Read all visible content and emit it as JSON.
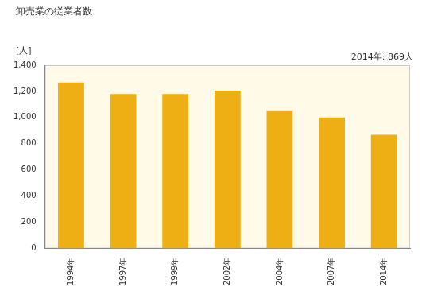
{
  "chart_data": {
    "type": "bar",
    "title": "卸売業の従業者数",
    "y_label": "[人]",
    "annotation": "2014年: 869人",
    "categories": [
      "1994年",
      "1997年",
      "1999年",
      "2002年",
      "2004年",
      "2007年",
      "2014年"
    ],
    "values": [
      1268,
      1180,
      1180,
      1205,
      1055,
      1000,
      869
    ],
    "color": "#eeaf14",
    "ylim": [
      0,
      1400
    ],
    "yticks": [
      0,
      200,
      400,
      600,
      800,
      {
        "value": 1000,
        "label": "1,000"
      },
      {
        "value": 1200,
        "label": "1,200"
      },
      {
        "value": 1400,
        "label": "1,400"
      }
    ],
    "grid": false
  }
}
